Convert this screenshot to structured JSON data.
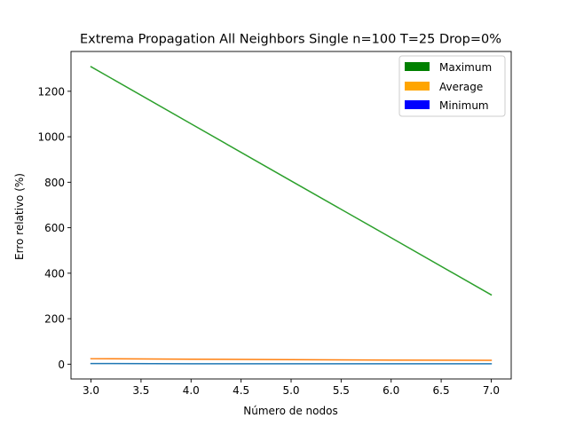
{
  "chart_data": {
    "type": "line",
    "title": "Extrema Propagation All Neighbors Single n=100 T=25 Drop=0%",
    "xlabel": "Número de nodos",
    "ylabel": "Erro relativo (%)",
    "xlim": [
      2.8,
      7.2
    ],
    "ylim": [
      -65,
      1375
    ],
    "xticks": [
      3.0,
      3.5,
      4.0,
      4.5,
      5.0,
      5.5,
      6.0,
      6.5,
      7.0
    ],
    "xtick_labels": [
      "3.0",
      "3.5",
      "4.0",
      "4.5",
      "5.0",
      "5.5",
      "6.0",
      "6.5",
      "7.0"
    ],
    "yticks": [
      0,
      200,
      400,
      600,
      800,
      1000,
      1200
    ],
    "ytick_labels": [
      "0",
      "200",
      "400",
      "600",
      "800",
      "1000",
      "1200"
    ],
    "x": [
      3,
      4,
      5,
      6,
      7
    ],
    "series": [
      {
        "key": "min",
        "color": "#1f77b4",
        "values": [
          3,
          2,
          2,
          2,
          2
        ]
      },
      {
        "key": "avg",
        "color": "#ff7f0e",
        "values": [
          24,
          22,
          20,
          18,
          17
        ]
      },
      {
        "key": "max",
        "color": "#2ca02c",
        "values": [
          1308,
          1057,
          806,
          556,
          305
        ]
      }
    ],
    "grid": false,
    "legend": {
      "placement": "top-right",
      "entries": [
        {
          "label": "Maximum",
          "color": "#008000"
        },
        {
          "label": "Average",
          "color": "#ffa500"
        },
        {
          "label": "Minimum",
          "color": "#0000ff"
        }
      ]
    }
  }
}
